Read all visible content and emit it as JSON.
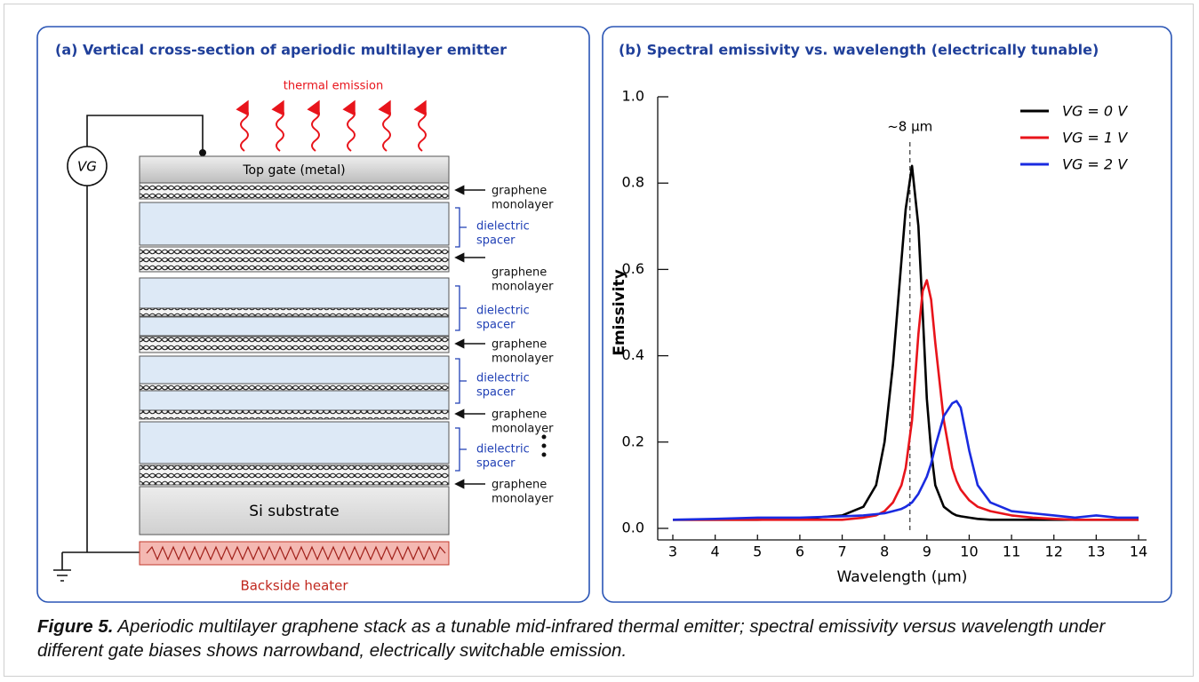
{
  "panel_a": {
    "title": "(a) Vertical cross-section of aperiodic multilayer emitter",
    "emission_label": "thermal emission",
    "source_label": "VG",
    "top_gate": "Top gate (metal)",
    "substrate": "Si substrate",
    "heater": "Backside heater",
    "layer_labels": [
      {
        "lines": [
          "graphene",
          "monolayer"
        ]
      },
      {
        "lines": [
          "dielectric",
          "spacer"
        ]
      },
      {
        "lines": [
          "graphene",
          "monolayer"
        ]
      },
      {
        "lines": [
          "dielectric",
          "spacer"
        ]
      },
      {
        "lines": [
          "graphene",
          "monolayer"
        ]
      },
      {
        "lines": [
          "dielectric",
          "spacer"
        ]
      },
      {
        "lines": [
          "graphene",
          "monolayer"
        ]
      },
      {
        "lines": [
          "dielectric",
          "spacer"
        ]
      },
      {
        "lines": [
          "graphene",
          "monolayer"
        ]
      }
    ]
  },
  "chart_data": {
    "type": "line",
    "title": "(b) Spectral emissivity vs. wavelength (electrically tunable)",
    "xlabel": "Wavelength (µm)",
    "ylabel": "Emissivity",
    "x": [
      3,
      4,
      5,
      6,
      7,
      7.5,
      7.8,
      8,
      8.2,
      8.4,
      8.5,
      8.65,
      8.8,
      8.9,
      9,
      9.1,
      9.2,
      9.4,
      9.6,
      9.7,
      9.8,
      10,
      10.2,
      10.5,
      11,
      11.5,
      12,
      12.5,
      13,
      13.5,
      14
    ],
    "series": [
      {
        "name": "VG = 0 V",
        "color": "#000000",
        "values": [
          0.02,
          0.02,
          0.02,
          0.022,
          0.03,
          0.05,
          0.1,
          0.2,
          0.38,
          0.62,
          0.74,
          0.84,
          0.7,
          0.5,
          0.3,
          0.18,
          0.1,
          0.05,
          0.035,
          0.03,
          0.028,
          0.025,
          0.022,
          0.02,
          0.02,
          0.02,
          0.02,
          0.02,
          0.02,
          0.02,
          0.02
        ]
      },
      {
        "name": "VG = 1 V",
        "color": "#e8141b",
        "values": [
          0.02,
          0.02,
          0.02,
          0.02,
          0.02,
          0.025,
          0.03,
          0.04,
          0.06,
          0.1,
          0.14,
          0.25,
          0.45,
          0.55,
          0.575,
          0.53,
          0.43,
          0.25,
          0.14,
          0.11,
          0.09,
          0.065,
          0.05,
          0.04,
          0.03,
          0.025,
          0.022,
          0.02,
          0.02,
          0.02,
          0.02
        ]
      },
      {
        "name": "VG = 2 V",
        "color": "#1a2be0",
        "values": [
          0.02,
          0.022,
          0.025,
          0.025,
          0.028,
          0.03,
          0.033,
          0.035,
          0.04,
          0.045,
          0.05,
          0.06,
          0.08,
          0.1,
          0.12,
          0.15,
          0.19,
          0.26,
          0.29,
          0.295,
          0.28,
          0.18,
          0.1,
          0.06,
          0.04,
          0.035,
          0.03,
          0.025,
          0.03,
          0.025,
          0.025
        ]
      }
    ],
    "xlim": [
      3,
      14
    ],
    "xticks": [
      3,
      4,
      5,
      6,
      7,
      8,
      9,
      10,
      11,
      12,
      13,
      14
    ],
    "ylim": [
      0,
      1
    ],
    "yticks": [
      {
        "value": 0,
        "label": "0.0"
      },
      {
        "value": 0.2,
        "label": "0.2"
      },
      {
        "value": 0.4,
        "label": "0.4"
      },
      {
        "value": 0.6,
        "label": "0.6"
      },
      {
        "value": 0.8,
        "label": "0.8"
      },
      {
        "value": 1,
        "label": "1.0"
      }
    ],
    "annotation": {
      "text": "~8 µm",
      "x": 8.6
    },
    "legend": "upper right"
  },
  "caption": {
    "label": "Figure 5.",
    "text": " Aperiodic multilayer graphene stack as a tunable mid-infrared thermal emitter; spectral emissivity versus wavelength under different gate biases shows narrowband, electrically switchable emission."
  }
}
